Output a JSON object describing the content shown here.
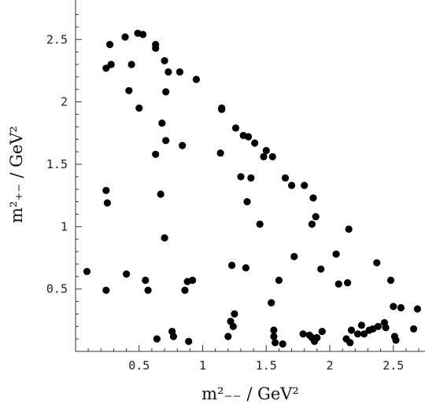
{
  "chart_data": {
    "type": "scatter",
    "title": "",
    "xlabel": "m²₋₋ / GeV²",
    "ylabel": "m²₊₋ / GeV²",
    "xlim": [
      0.0,
      2.75
    ],
    "ylim": [
      0.0,
      2.75
    ],
    "xticks": [
      {
        "value": 0.5,
        "label": "0.5"
      },
      {
        "value": 1.0,
        "label": "1"
      },
      {
        "value": 1.5,
        "label": "1.5"
      },
      {
        "value": 2.0,
        "label": "2"
      },
      {
        "value": 2.5,
        "label": "2.5"
      }
    ],
    "yticks": [
      {
        "value": 0.5,
        "label": "0.5"
      },
      {
        "value": 1.0,
        "label": "1"
      },
      {
        "value": 1.5,
        "label": "1.5"
      },
      {
        "value": 2.0,
        "label": "2"
      },
      {
        "value": 2.5,
        "label": "2.5"
      }
    ],
    "minor_tick_step": 0.1,
    "grid": false,
    "marker_color": "#000000",
    "points": [
      [
        0.09,
        0.64
      ],
      [
        0.24,
        2.27
      ],
      [
        0.27,
        2.46
      ],
      [
        0.28,
        2.3
      ],
      [
        0.24,
        1.29
      ],
      [
        0.25,
        1.19
      ],
      [
        0.24,
        0.49
      ],
      [
        0.39,
        2.52
      ],
      [
        0.42,
        2.09
      ],
      [
        0.44,
        2.3
      ],
      [
        0.49,
        2.55
      ],
      [
        0.5,
        1.95
      ],
      [
        0.53,
        2.54
      ],
      [
        0.4,
        0.62
      ],
      [
        0.55,
        0.57
      ],
      [
        0.57,
        0.49
      ],
      [
        0.63,
        2.46
      ],
      [
        0.63,
        2.43
      ],
      [
        0.63,
        1.58
      ],
      [
        0.64,
        0.1
      ],
      [
        0.67,
        1.26
      ],
      [
        0.68,
        1.83
      ],
      [
        0.7,
        2.33
      ],
      [
        0.71,
        2.08
      ],
      [
        0.71,
        1.69
      ],
      [
        0.7,
        0.91
      ],
      [
        0.73,
        2.24
      ],
      [
        0.76,
        0.16
      ],
      [
        0.77,
        0.12
      ],
      [
        0.82,
        2.24
      ],
      [
        0.84,
        1.65
      ],
      [
        0.86,
        0.49
      ],
      [
        0.88,
        0.56
      ],
      [
        0.89,
        0.08
      ],
      [
        0.92,
        0.57
      ],
      [
        0.95,
        2.18
      ],
      [
        1.15,
        1.95
      ],
      [
        1.15,
        1.94
      ],
      [
        1.14,
        1.59
      ],
      [
        1.2,
        0.12
      ],
      [
        1.22,
        0.24
      ],
      [
        1.23,
        0.69
      ],
      [
        1.24,
        0.2
      ],
      [
        1.25,
        0.3
      ],
      [
        1.26,
        1.79
      ],
      [
        1.3,
        1.4
      ],
      [
        1.32,
        1.73
      ],
      [
        1.34,
        0.67
      ],
      [
        1.35,
        1.2
      ],
      [
        1.36,
        1.72
      ],
      [
        1.38,
        1.39
      ],
      [
        1.41,
        1.67
      ],
      [
        1.45,
        1.02
      ],
      [
        1.48,
        1.56
      ],
      [
        1.5,
        1.61
      ],
      [
        1.54,
        0.39
      ],
      [
        1.55,
        1.56
      ],
      [
        1.56,
        0.17
      ],
      [
        1.56,
        0.12
      ],
      [
        1.57,
        0.07
      ],
      [
        1.6,
        0.57
      ],
      [
        1.63,
        0.06
      ],
      [
        1.65,
        1.39
      ],
      [
        1.7,
        1.33
      ],
      [
        1.72,
        0.76
      ],
      [
        1.79,
        0.14
      ],
      [
        1.8,
        1.33
      ],
      [
        1.84,
        0.13
      ],
      [
        1.86,
        0.11
      ],
      [
        1.86,
        1.02
      ],
      [
        1.87,
        1.23
      ],
      [
        1.88,
        0.08
      ],
      [
        1.89,
        1.08
      ],
      [
        1.9,
        0.11
      ],
      [
        1.93,
        0.66
      ],
      [
        1.94,
        0.16
      ],
      [
        2.05,
        0.78
      ],
      [
        2.07,
        0.54
      ],
      [
        2.13,
        0.1
      ],
      [
        2.14,
        0.55
      ],
      [
        2.15,
        0.98
      ],
      [
        2.16,
        0.07
      ],
      [
        2.17,
        0.17
      ],
      [
        2.22,
        0.14
      ],
      [
        2.25,
        0.21
      ],
      [
        2.27,
        0.14
      ],
      [
        2.31,
        0.17
      ],
      [
        2.34,
        0.18
      ],
      [
        2.37,
        0.71
      ],
      [
        2.38,
        0.2
      ],
      [
        2.43,
        0.23
      ],
      [
        2.44,
        0.19
      ],
      [
        2.48,
        0.57
      ],
      [
        2.5,
        0.36
      ],
      [
        2.51,
        0.12
      ],
      [
        2.52,
        0.09
      ],
      [
        2.56,
        0.35
      ],
      [
        2.66,
        0.18
      ],
      [
        2.69,
        0.34
      ]
    ]
  }
}
